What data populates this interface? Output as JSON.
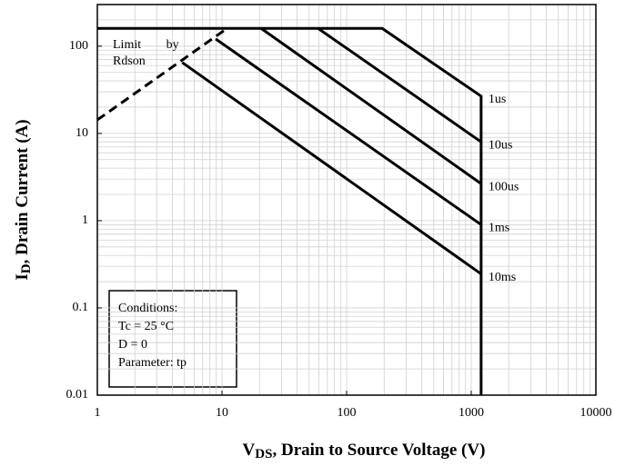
{
  "chart_data": {
    "type": "line",
    "log_x": true,
    "log_y": true,
    "grid": true,
    "minor_grid": true,
    "xlim": [
      1,
      10000
    ],
    "xticks": [
      1,
      10,
      100,
      1000,
      10000
    ],
    "ylim": [
      0.01,
      300
    ],
    "yticks": [
      0.01,
      0.1,
      1,
      10,
      100
    ],
    "xlabel": {
      "main": "V",
      "sub": "DS",
      "rest": ", Drain to Source Voltage (V)"
    },
    "ylabel": {
      "main": "I",
      "sub": "D",
      "rest": ", Drain Current (A)"
    },
    "series": [
      {
        "name": "1us",
        "color": "#000000",
        "x": [
          1,
          193,
          1200,
          1200
        ],
        "values": [
          160,
          160,
          26.7,
          0.01
        ]
      },
      {
        "name": "10us",
        "color": "#000000",
        "x": [
          59,
          1200
        ],
        "values": [
          160,
          8
        ]
      },
      {
        "name": "100us",
        "color": "#000000",
        "x": [
          20.6,
          1200
        ],
        "values": [
          160,
          2.65
        ]
      },
      {
        "name": "1ms",
        "color": "#000000",
        "x": [
          8.9,
          1200
        ],
        "values": [
          121,
          0.9
        ]
      },
      {
        "name": "10ms",
        "color": "#000000",
        "x": [
          4.8,
          1200
        ],
        "values": [
          65,
          0.245
        ]
      }
    ],
    "rdson_line": {
      "color": "#000000",
      "dashed": true,
      "x": [
        1,
        11
      ],
      "values": [
        14.3,
        160
      ]
    },
    "rdson_label": [
      "Limit by",
      "Rdson"
    ],
    "conditions": [
      "Conditions:",
      "Tc = 25 °C",
      "D = 0",
      "Parameter: tp"
    ]
  }
}
